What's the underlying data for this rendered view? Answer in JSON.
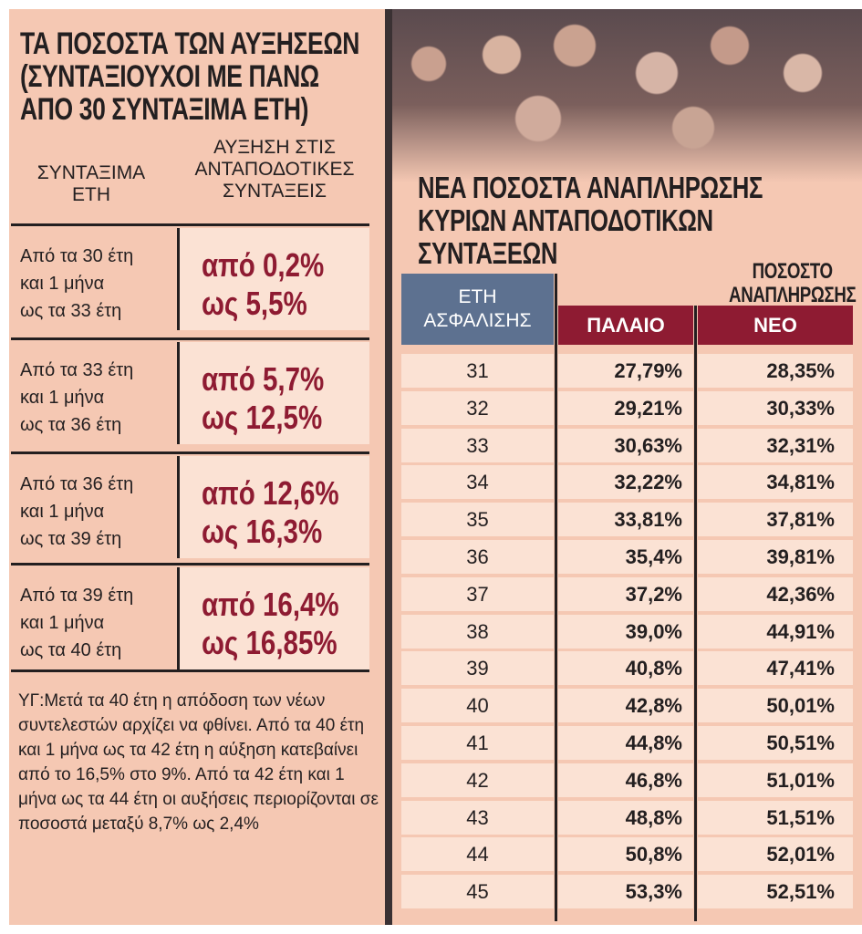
{
  "colors": {
    "background": "#f5c8b3",
    "cell": "#fbe2d4",
    "accent_red": "#8e1b32",
    "header_blue": "#5d7190"
  },
  "left": {
    "title_lines": [
      "ΤΑ ΠΟΣΟΣΤΑ ΤΩΝ ΑΥΞΗΣΕΩΝ",
      "(ΣΥΝΤΑΞΙΟΥΧΟΙ ΜΕ ΠΑΝΩ",
      "ΑΠΟ 30 ΣΥΝΤΑΞΙΜΑ ΕΤΗ)"
    ],
    "col1_header": [
      "ΣΥΝΤΑΞΙΜΑ",
      "ΕΤΗ"
    ],
    "col2_header": [
      "ΑΥΞΗΣΗ ΣΤΙΣ",
      "ΑΝΤΑΠΟΔΟΤΙΚΕΣ",
      "ΣΥΝΤΑΞΕΙΣ"
    ],
    "rows": [
      {
        "years": [
          "Από τα 30 έτη",
          "και 1 μήνα",
          "ως τα 33 έτη"
        ],
        "from": "από 0,2%",
        "to": "ως 5,5%"
      },
      {
        "years": [
          "Από τα 33 έτη",
          "και 1 μήνα",
          "ως τα 36 έτη"
        ],
        "from": "από 5,7%",
        "to": "ως 12,5%"
      },
      {
        "years": [
          "Από τα 36 έτη",
          "και 1 μήνα",
          "ως τα 39 έτη"
        ],
        "from": "από 12,6%",
        "to": "ως 16,3%"
      },
      {
        "years": [
          "Από τα 39 έτη",
          "και 1 μήνα",
          "ως τα 40 έτη"
        ],
        "from": "από 16,4%",
        "to": "ως 16,85%"
      }
    ],
    "note": "ΥΓ:Μετά τα 40 έτη η απόδοση των νέων συντελεστών αρχίζει να φθίνει. Από τα 40 έτη και 1 μήνα ως τα 42 έτη η αύξηση κατεβαίνει από το 16,5% στο 9%. Από τα 42 έτη και 1 μήνα ως τα 44 έτη οι αυξήσεις περιορίζονται σε ποσοστά μεταξύ 8,7% ως 2,4%"
  },
  "right": {
    "title_lines": [
      "ΝΕΑ ΠΟΣΟΣΤΑ ΑΝΑΠΛΗΡΩΣΗΣ",
      "ΚΥΡΙΩΝ  ΑΝΤΑΠΟΔΟΤΙΚΩΝ",
      "ΣΥΝΤΑΞΕΩΝ"
    ],
    "subheader": [
      "ΠΟΣΟΣΤΟ",
      "ΑΝΑΠΛΗΡΩΣΗΣ"
    ],
    "col_years": [
      "ΕΤΗ",
      "ΑΣΦΑΛΙΣΗΣ"
    ],
    "col_old": "ΠΑΛΑΙΟ",
    "col_new": "ΝΕΟ"
  },
  "chart_data": {
    "type": "table",
    "title": "ΝΕΑ ΠΟΣΟΣΤΑ ΑΝΑΠΛΗΡΩΣΗΣ ΚΥΡΙΩΝ ΑΝΤΑΠΟΔΟΤΙΚΩΝ ΣΥΝΤΑΞΕΩΝ",
    "columns": [
      "ΕΤΗ ΑΣΦΑΛΙΣΗΣ",
      "ΠΑΛΑΙΟ",
      "ΝΕΟ"
    ],
    "rows": [
      [
        "31",
        "27,79%",
        "28,35%"
      ],
      [
        "32",
        "29,21%",
        "30,33%"
      ],
      [
        "33",
        "30,63%",
        "32,31%"
      ],
      [
        "34",
        "32,22%",
        "34,81%"
      ],
      [
        "35",
        "33,81%",
        "37,81%"
      ],
      [
        "36",
        "35,4%",
        "39,81%"
      ],
      [
        "37",
        "37,2%",
        "42,36%"
      ],
      [
        "38",
        "39,0%",
        "44,91%"
      ],
      [
        "39",
        "40,8%",
        "47,41%"
      ],
      [
        "40",
        "42,8%",
        "50,01%"
      ],
      [
        "41",
        "44,8%",
        "50,51%"
      ],
      [
        "42",
        "46,8%",
        "51,01%"
      ],
      [
        "43",
        "48,8%",
        "51,51%"
      ],
      [
        "44",
        "50,8%",
        "52,01%"
      ],
      [
        "45",
        "53,3%",
        "52,51%"
      ]
    ]
  }
}
